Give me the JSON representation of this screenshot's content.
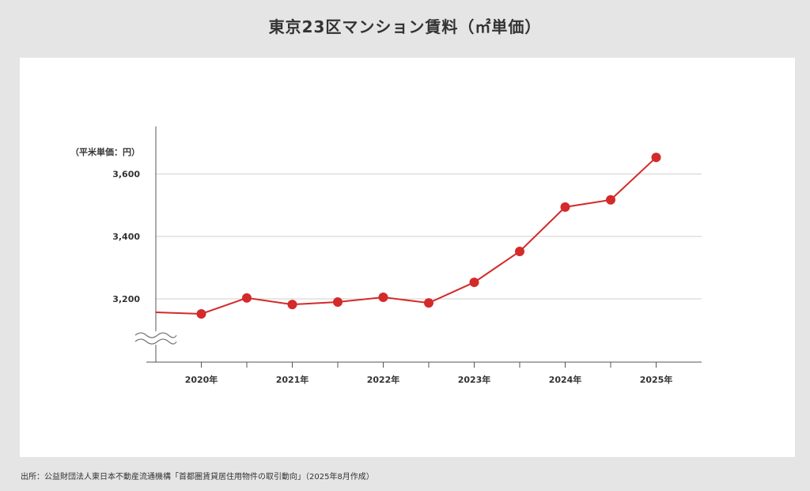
{
  "title": "東京23区マンション賃料（㎡単価）",
  "source": "出所：公益財団法人東日本不動産流通機構「首都圏賃貸居住用物件の取引動向」（2025年8月作成）",
  "chart_data": {
    "type": "line",
    "title": "東京23区マンション賃料（㎡単価）",
    "ylabel": "（平米単価：円）",
    "xlabel": "",
    "x": [
      2019.5,
      2020,
      2020.5,
      2021,
      2021.5,
      2022,
      2022.5,
      2023,
      2023.5,
      2024,
      2024.5,
      2025
    ],
    "series": [
      {
        "name": "東京23区マンション賃料",
        "values": [
          3157,
          3152,
          3203,
          3182,
          3190,
          3205,
          3187,
          3253,
          3352,
          3494,
          3517,
          3653
        ],
        "markers": [
          false,
          true,
          true,
          true,
          true,
          true,
          true,
          true,
          true,
          true,
          true,
          true
        ],
        "color": "#d42a2a"
      }
    ],
    "xticks": [
      2020,
      2021,
      2022,
      2023,
      2024,
      2025
    ],
    "xtick_labels": [
      "2020年",
      "2021年",
      "2022年",
      "2023年",
      "2024年",
      "2025年"
    ],
    "yticks": [
      3200,
      3400,
      3600
    ],
    "ytick_labels": [
      "3,200",
      "3,400",
      "3,600"
    ],
    "ylim": [
      3000,
      3750
    ],
    "xlim": [
      2019.5,
      2025.5
    ],
    "axis_break": true,
    "grid": "horizontal",
    "legend": "none"
  }
}
